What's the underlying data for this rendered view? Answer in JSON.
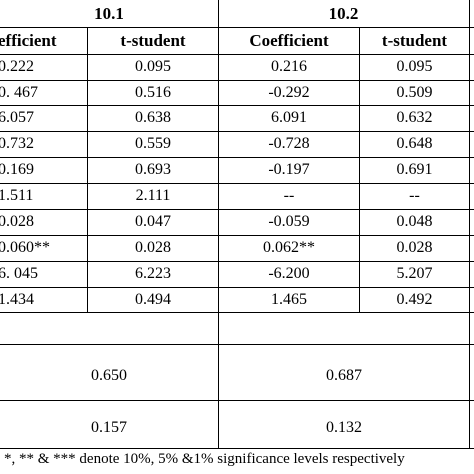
{
  "table": {
    "groups": [
      "10.1",
      "10.2"
    ],
    "columns": [
      "efficient",
      "t-student",
      "Coefficient",
      "t-student"
    ],
    "rows": [
      [
        "0.222",
        "0.095",
        "0.216",
        "0.095"
      ],
      [
        "0. 467",
        "0.516",
        "-0.292",
        "0.509"
      ],
      [
        "6.057",
        "0.638",
        "6.091",
        "0.632"
      ],
      [
        "0.732",
        "0.559",
        "-0.728",
        "0.648"
      ],
      [
        "0.169",
        "0.693",
        "-0.197",
        "0.691"
      ],
      [
        "1.511",
        "2.111",
        "--",
        "--"
      ],
      [
        "0.028",
        "0.047",
        "-0.059",
        "0.048"
      ],
      [
        "0.060**",
        "0.028",
        "0.062**",
        "0.028"
      ],
      [
        "6. 045",
        "6.223",
        "-6.200",
        "5.207"
      ],
      [
        "1.434",
        "0.494",
        "1.465",
        "0.492"
      ]
    ],
    "summary": [
      [
        "0.650",
        "0.687"
      ],
      [
        "0.157",
        "0.132"
      ]
    ],
    "footnote": "*, ** & *** denote 10%, 5% &1% significance levels respectively"
  }
}
